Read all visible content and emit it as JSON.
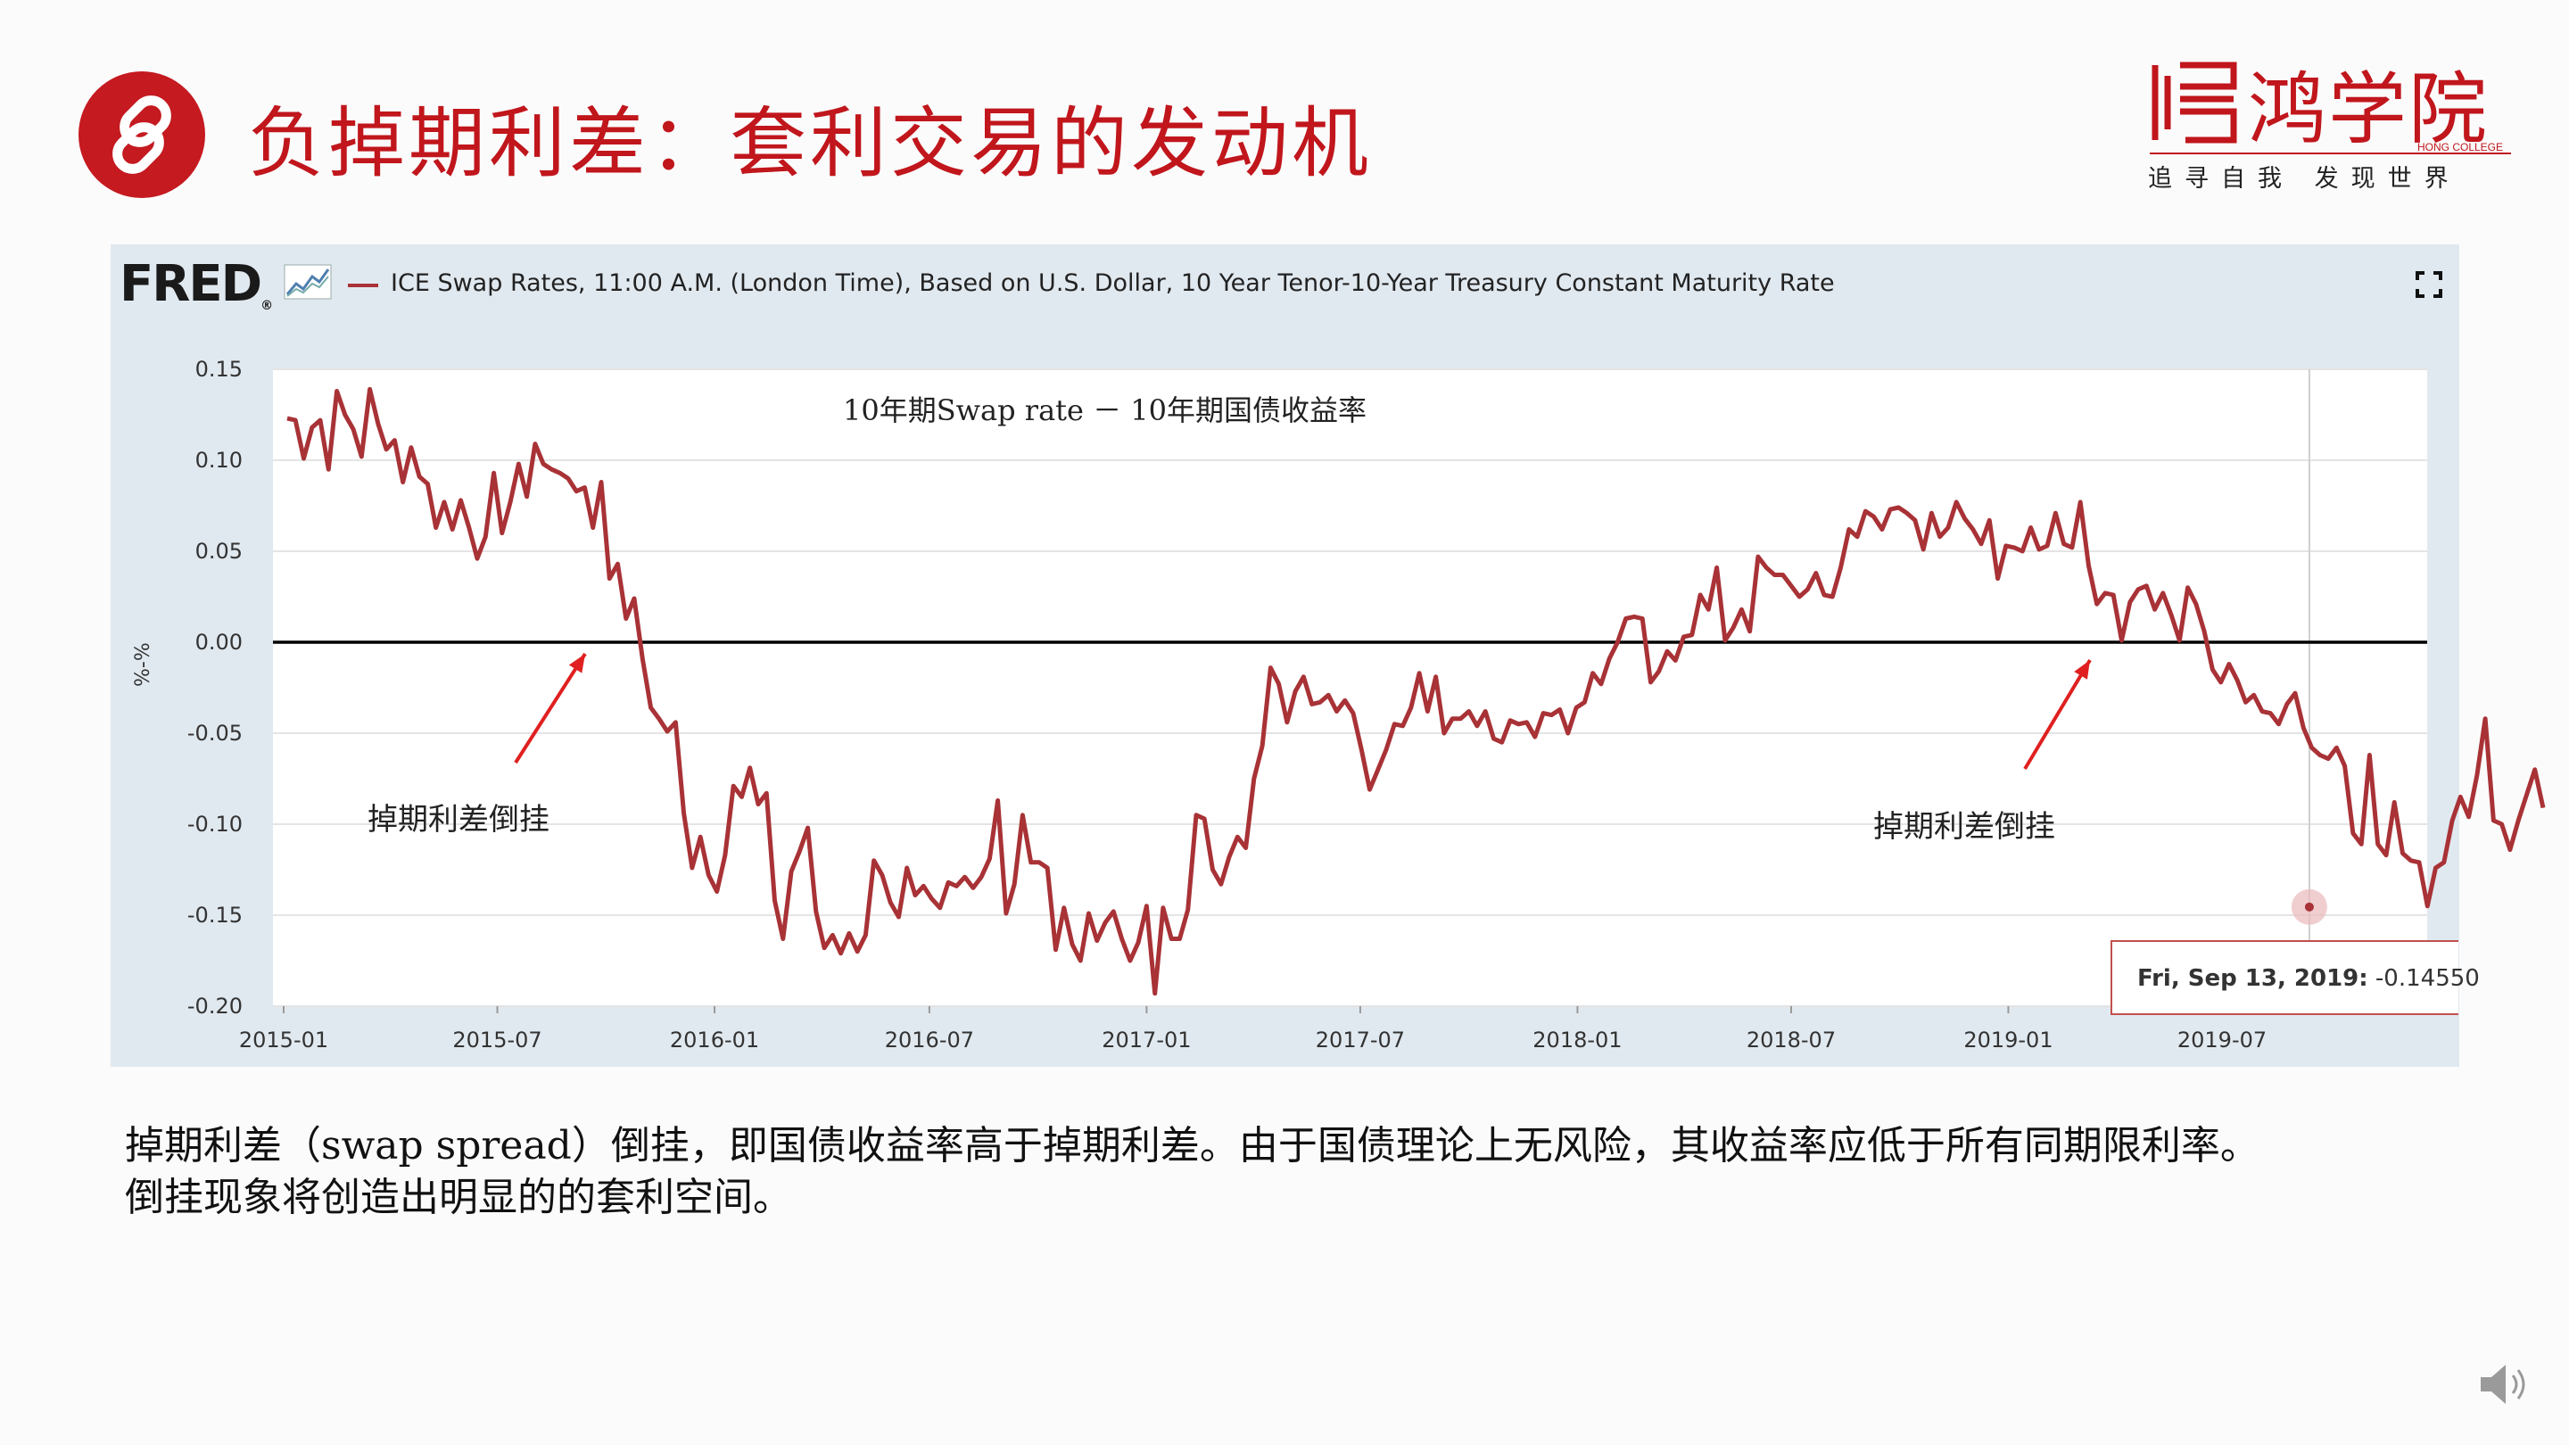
{
  "slide": {
    "title": "负掉期利差：套利交易的发动机",
    "body_line1": "掉期利差（swap spread）倒挂，即国债收益率高于掉期利差。由于国债理论上无风险，其收益率应低于所有同期限利率。",
    "body_line2": "倒挂现象将创造出明显的的套利空间。"
  },
  "logo": {
    "name": "鸿学院",
    "english": "HONG COLLEGE",
    "slogan": "追寻自我  发现世界"
  },
  "fred": {
    "brand": "FRED",
    "series_title": "ICE Swap Rates, 11:00 A.M. (London Time), Based on U.S. Dollar, 10 Year Tenor-10-Year Treasury Constant Maturity Rate",
    "tooltip_date": "Fri, Sep 13, 2019:",
    "tooltip_value": "-0.14550"
  },
  "colors": {
    "brand_red": "#c0161c",
    "series": "#a83236",
    "panel_bg": "#e1e9f0",
    "annotation_arrow": "#e02020"
  },
  "icons": [
    "link-icon",
    "fullscreen-icon",
    "speaker-icon",
    "fred-sparkline-icon"
  ],
  "chart_data": {
    "type": "line",
    "title": "",
    "annotation_title": "10年期Swap rate － 10年期国债收益率",
    "ylabel": "%-%",
    "xlabel": "",
    "ylim": [
      -0.2,
      0.15
    ],
    "yticks": [
      0.15,
      0.1,
      0.05,
      0.0,
      -0.05,
      -0.1,
      -0.15,
      -0.2
    ],
    "ytick_labels": [
      "0.15",
      "0.10",
      "0.05",
      "0.00",
      "-0.05",
      "-0.10",
      "-0.15",
      "-0.20"
    ],
    "xtick_labels": [
      "2015-01",
      "2015-07",
      "2016-01",
      "2016-07",
      "2017-01",
      "2017-07",
      "2018-01",
      "2018-07",
      "2019-01",
      "2019-07"
    ],
    "x_start": "2015-01",
    "x_end": "2019-12",
    "frequency": "weekly",
    "reference_line": 0,
    "annotations": [
      {
        "text": "掉期利差倒挂",
        "x": "2015-10",
        "y": 0.0
      },
      {
        "text": "掉期利差倒挂",
        "x": "2019-03",
        "y": 0.0
      }
    ],
    "highlight": {
      "x": "2019-09-13",
      "y": -0.1455
    },
    "series": [
      {
        "values": [
          0.123,
          0.122,
          0.101,
          0.118,
          0.122,
          0.095,
          0.138,
          0.125,
          0.117,
          0.102,
          0.139,
          0.12,
          0.106,
          0.111,
          0.088,
          0.107,
          0.091,
          0.087,
          0.063,
          0.077,
          0.062,
          0.078,
          0.063,
          0.046,
          0.058,
          0.093,
          0.06,
          0.077,
          0.098,
          0.08,
          0.109,
          0.098,
          0.095,
          0.093,
          0.09,
          0.083,
          0.085,
          0.063,
          0.088,
          0.035,
          0.043,
          0.013,
          0.024,
          -0.009,
          -0.036,
          -0.042,
          -0.049,
          -0.044,
          -0.094,
          -0.124,
          -0.107,
          -0.128,
          -0.137,
          -0.117,
          -0.079,
          -0.085,
          -0.069,
          -0.089,
          -0.083,
          -0.142,
          -0.163,
          -0.126,
          -0.115,
          -0.102,
          -0.148,
          -0.168,
          -0.161,
          -0.171,
          -0.16,
          -0.17,
          -0.161,
          -0.12,
          -0.128,
          -0.143,
          -0.151,
          -0.124,
          -0.139,
          -0.134,
          -0.141,
          -0.146,
          -0.132,
          -0.134,
          -0.129,
          -0.135,
          -0.129,
          -0.119,
          -0.087,
          -0.149,
          -0.133,
          -0.095,
          -0.121,
          -0.121,
          -0.124,
          -0.169,
          -0.146,
          -0.166,
          -0.175,
          -0.149,
          -0.164,
          -0.154,
          -0.148,
          -0.163,
          -0.175,
          -0.165,
          -0.145,
          -0.193,
          -0.146,
          -0.163,
          -0.163,
          -0.147,
          -0.095,
          -0.097,
          -0.125,
          -0.133,
          -0.118,
          -0.107,
          -0.113,
          -0.075,
          -0.057,
          -0.014,
          -0.023,
          -0.044,
          -0.027,
          -0.019,
          -0.034,
          -0.033,
          -0.029,
          -0.038,
          -0.032,
          -0.039,
          -0.059,
          -0.081,
          -0.07,
          -0.059,
          -0.045,
          -0.046,
          -0.036,
          -0.017,
          -0.038,
          -0.019,
          -0.05,
          -0.042,
          -0.042,
          -0.038,
          -0.046,
          -0.038,
          -0.053,
          -0.055,
          -0.043,
          -0.045,
          -0.044,
          -0.052,
          -0.039,
          -0.04,
          -0.037,
          -0.05,
          -0.036,
          -0.033,
          -0.017,
          -0.023,
          -0.009,
          0.0,
          0.013,
          0.014,
          0.013,
          -0.022,
          -0.016,
          -0.005,
          -0.01,
          0.003,
          0.004,
          0.026,
          0.018,
          0.041,
          0.001,
          0.008,
          0.018,
          0.006,
          0.047,
          0.041,
          0.037,
          0.037,
          0.031,
          0.025,
          0.029,
          0.038,
          0.026,
          0.025,
          0.041,
          0.062,
          0.058,
          0.072,
          0.069,
          0.062,
          0.073,
          0.074,
          0.071,
          0.067,
          0.051,
          0.071,
          0.058,
          0.063,
          0.077,
          0.068,
          0.062,
          0.054,
          0.067,
          0.035,
          0.053,
          0.052,
          0.05,
          0.063,
          0.051,
          0.053,
          0.071,
          0.054,
          0.052,
          0.077,
          0.042,
          0.021,
          0.027,
          0.026,
          0.001,
          0.022,
          0.029,
          0.031,
          0.018,
          0.027,
          0.015,
          0.001,
          0.03,
          0.021,
          0.006,
          -0.015,
          -0.022,
          -0.012,
          -0.021,
          -0.033,
          -0.029,
          -0.038,
          -0.039,
          -0.045,
          -0.034,
          -0.028,
          -0.047,
          -0.058,
          -0.062,
          -0.064,
          -0.058,
          -0.068,
          -0.105,
          -0.111,
          -0.062,
          -0.111,
          -0.117,
          -0.088,
          -0.116,
          -0.12,
          -0.121,
          -0.145,
          -0.124,
          -0.121,
          -0.098,
          -0.085,
          -0.096,
          -0.073,
          -0.042,
          -0.098,
          -0.1,
          -0.114,
          -0.098,
          -0.084,
          -0.07,
          -0.091
        ]
      }
    ]
  }
}
